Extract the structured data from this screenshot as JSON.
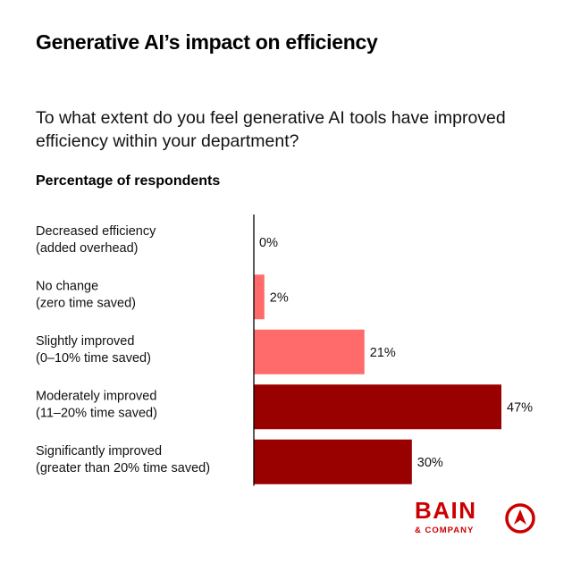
{
  "title": "Generative AI’s impact on efficiency",
  "question": "To what extent do you feel generative AI tools have improved efficiency within your department?",
  "subtitle": "Percentage of respondents",
  "colors": {
    "light": "#ff6b6b",
    "dark": "#990000",
    "axis": "#000000",
    "brand": "#cc0000"
  },
  "chart_data": {
    "type": "bar",
    "orientation": "horizontal",
    "categories": [
      [
        "Decreased efficiency",
        "(added overhead)"
      ],
      [
        "No change",
        "(zero time saved)"
      ],
      [
        "Slightly improved",
        "(0–10% time saved)"
      ],
      [
        "Moderately improved",
        "(11–20% time saved)"
      ],
      [
        "Significantly improved",
        "(greater than 20% time saved)"
      ]
    ],
    "values": [
      0,
      2,
      21,
      47,
      30
    ],
    "value_labels": [
      "0%",
      "2%",
      "21%",
      "47%",
      "30%"
    ],
    "bar_colors": [
      "#ff6b6b",
      "#ff6b6b",
      "#ff6b6b",
      "#990000",
      "#990000"
    ],
    "xlim": [
      0,
      50
    ],
    "grid": false,
    "legend": "none"
  },
  "logo": {
    "word": "BAIN",
    "sub": "& COMPANY"
  }
}
